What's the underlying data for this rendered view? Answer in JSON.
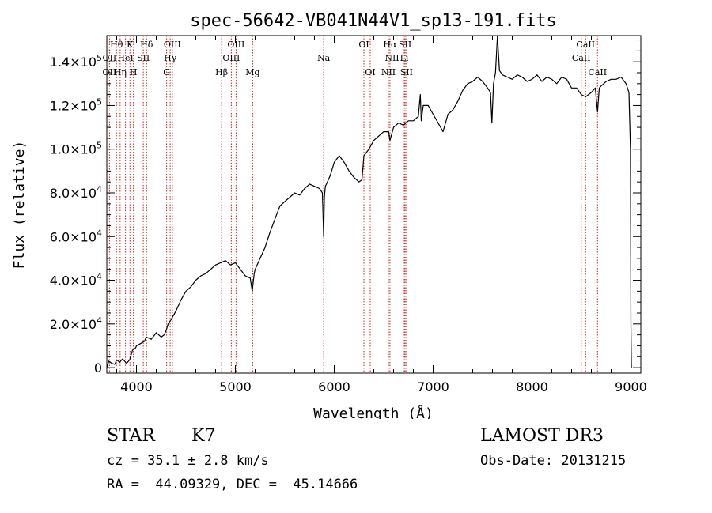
{
  "chart_data": {
    "type": "line",
    "title": "spec-56642-VB041N44V1_sp13-191.fits",
    "xlabel": "Wavelength (Å)",
    "ylabel": "Flux (relative)",
    "xlim": [
      3700,
      9100
    ],
    "ylim": [
      -2500,
      152000
    ],
    "xticks": [
      4000,
      5000,
      6000,
      7000,
      8000,
      9000
    ],
    "xtick_labels": [
      "4000",
      "5000",
      "6000",
      "7000",
      "8000",
      "9000"
    ],
    "yticks": [
      0,
      20000,
      40000,
      60000,
      80000,
      100000,
      120000,
      140000
    ],
    "ytick_labels": [
      {
        "mant": "0",
        "exp": ""
      },
      {
        "mant": "2.0×10",
        "exp": "4"
      },
      {
        "mant": "4.0×10",
        "exp": "4"
      },
      {
        "mant": "6.0×10",
        "exp": "4"
      },
      {
        "mant": "8.0×10",
        "exp": "4"
      },
      {
        "mant": "1.0×10",
        "exp": "5"
      },
      {
        "mant": "1.2×10",
        "exp": "5"
      },
      {
        "mant": "1.4×10",
        "exp": "5"
      }
    ],
    "line_color": "#000000",
    "marker_color": "#cc2222",
    "series": [
      {
        "name": "flux",
        "x": [
          3700,
          3720,
          3750,
          3780,
          3800,
          3830,
          3860,
          3900,
          3930,
          3960,
          3990,
          4000,
          4040,
          4080,
          4100,
          4150,
          4200,
          4250,
          4280,
          4300,
          4320,
          4350,
          4400,
          4450,
          4500,
          4550,
          4600,
          4650,
          4700,
          4750,
          4800,
          4850,
          4900,
          4950,
          5000,
          5050,
          5100,
          5150,
          5170,
          5190,
          5200,
          5250,
          5300,
          5350,
          5400,
          5450,
          5500,
          5550,
          5600,
          5650,
          5700,
          5750,
          5800,
          5850,
          5880,
          5893,
          5900,
          5910,
          5930,
          5960,
          6000,
          6050,
          6100,
          6150,
          6200,
          6250,
          6280,
          6300,
          6350,
          6400,
          6450,
          6500,
          6550,
          6563,
          6600,
          6650,
          6700,
          6750,
          6800,
          6850,
          6870,
          6880,
          6900,
          6950,
          7000,
          7050,
          7100,
          7150,
          7200,
          7250,
          7300,
          7350,
          7400,
          7450,
          7500,
          7550,
          7580,
          7594,
          7610,
          7630,
          7650,
          7670,
          7700,
          7750,
          7800,
          7850,
          7900,
          7950,
          8000,
          8050,
          8100,
          8150,
          8200,
          8250,
          8300,
          8350,
          8400,
          8450,
          8498,
          8542,
          8600,
          8640,
          8662,
          8680,
          8700,
          8750,
          8800,
          8850,
          8900,
          8950,
          8980,
          8995,
          9000,
          9005
        ],
        "y": [
          0,
          3000,
          2000,
          1500,
          3500,
          2500,
          4000,
          2000,
          3500,
          8000,
          9000,
          10000,
          11000,
          12000,
          14000,
          13000,
          16000,
          14000,
          15000,
          17000,
          20000,
          22000,
          26000,
          31000,
          35000,
          37000,
          40000,
          42000,
          43000,
          45000,
          47000,
          48000,
          49000,
          47000,
          48000,
          45000,
          42000,
          41000,
          35000,
          43000,
          45000,
          50000,
          55000,
          62000,
          68000,
          74000,
          76000,
          78000,
          80000,
          79000,
          82000,
          84000,
          83000,
          82000,
          80000,
          60000,
          78000,
          83000,
          85000,
          88000,
          94000,
          97000,
          94000,
          90000,
          87000,
          85000,
          86000,
          97000,
          100000,
          104000,
          106000,
          108000,
          108000,
          104000,
          110000,
          112000,
          111000,
          113000,
          113000,
          115000,
          125000,
          113000,
          120000,
          120000,
          116000,
          112000,
          108000,
          116000,
          118000,
          122000,
          127000,
          130000,
          131000,
          133000,
          131000,
          128000,
          126000,
          112000,
          130000,
          135000,
          152000,
          136000,
          134000,
          133000,
          132000,
          134000,
          133000,
          131000,
          132000,
          134000,
          131000,
          133000,
          132000,
          130000,
          133000,
          132000,
          128000,
          128000,
          125000,
          124000,
          126000,
          128000,
          117000,
          128000,
          129000,
          131000,
          132000,
          132000,
          133000,
          130000,
          126000,
          100000,
          20000,
          0
        ]
      }
    ],
    "lines_upper": [
      {
        "label": "Hθ",
        "x": 3798
      },
      {
        "label": "K",
        "x": 3934
      },
      {
        "label": "Hδ",
        "x": 4102
      },
      {
        "label": "OIII",
        "x": 4363
      },
      {
        "label": "OIII",
        "x": 5007
      },
      {
        "label": "OI",
        "x": 6300
      },
      {
        "label": "Hα",
        "x": 6563
      },
      {
        "label": "SII",
        "x": 6717
      },
      {
        "label": "CaII",
        "x": 8542
      }
    ],
    "lines_middle": [
      {
        "label": "OII",
        "x": 3727
      },
      {
        "label": "HeI",
        "x": 3889
      },
      {
        "label": "SII",
        "x": 4069
      },
      {
        "label": "Hγ",
        "x": 4341
      },
      {
        "label": "OIII",
        "x": 4959
      },
      {
        "label": "Na",
        "x": 5893
      },
      {
        "label": "NII",
        "x": 6584
      },
      {
        "label": "Li",
        "x": 6708
      },
      {
        "label": "CaII",
        "x": 8498
      }
    ],
    "lines_lower": [
      {
        "label": "OII",
        "x": 3727
      },
      {
        "label": "Hη",
        "x": 3835
      },
      {
        "label": "H",
        "x": 3969
      },
      {
        "label": "G",
        "x": 4305
      },
      {
        "label": "Hβ",
        "x": 4861
      },
      {
        "label": "Mg",
        "x": 5175
      },
      {
        "label": "OI",
        "x": 6364
      },
      {
        "label": "NII",
        "x": 6548
      },
      {
        "label": "SII",
        "x": 6731
      },
      {
        "label": "CaII",
        "x": 8662
      }
    ]
  },
  "info": {
    "class": "STAR",
    "subclass": "K7",
    "redshift": "cz = 35.1 ± 2.8 km/s",
    "coords": "RA =  44.09329, DEC =  45.14666",
    "survey": "LAMOST DR3",
    "obs_date": "Obs-Date: 20131215"
  }
}
